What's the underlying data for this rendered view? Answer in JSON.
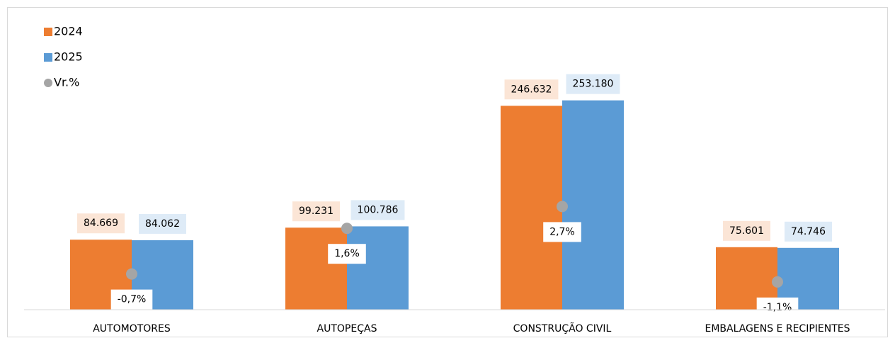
{
  "chart_data": {
    "type": "bar",
    "categories": [
      "AUTOMOTORES",
      "AUTOPEÇAS",
      "CONSTRUÇÃO CIVIL",
      "EMBALAGENS E RECIPIENTES"
    ],
    "series": [
      {
        "name": "2024",
        "color": "#ed7d31",
        "values": [
          84669,
          99231,
          246632,
          75601
        ],
        "value_labels": [
          "84.669",
          "99.231",
          "246.632",
          "75.601"
        ]
      },
      {
        "name": "2025",
        "color": "#5b9bd5",
        "values": [
          84062,
          100786,
          253180,
          74746
        ],
        "value_labels": [
          "84.062",
          "100.786",
          "253.180",
          "74.746"
        ]
      },
      {
        "name": "Vr.%",
        "color": "#a5a5a5",
        "axis": "y2",
        "values": [
          -0.7,
          1.6,
          2.7,
          -1.1
        ],
        "value_labels": [
          "-0,7%",
          "1,6%",
          "2,7%",
          "-1,1%"
        ]
      }
    ],
    "ylim": [
      0,
      300000
    ],
    "y2lim": [
      -2.5,
      10
    ]
  }
}
